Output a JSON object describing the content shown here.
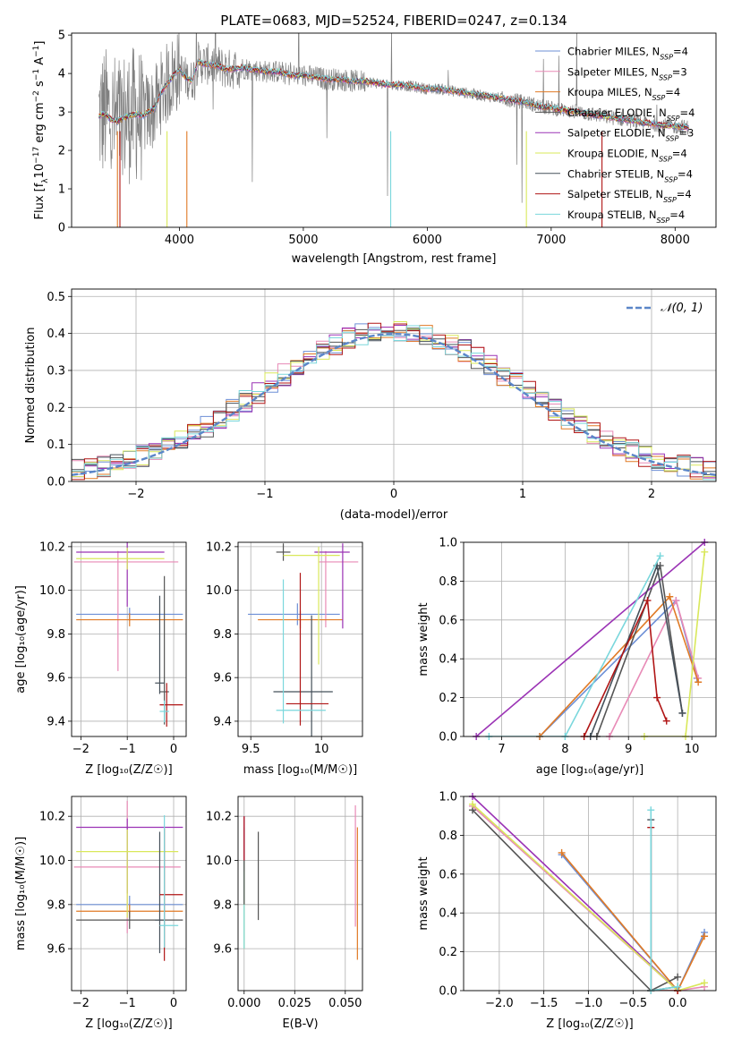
{
  "title": "PLATE=0683, MJD=52524, FIBERID=0247, z=0.134",
  "colors": [
    "#6d8fd6",
    "#e88ab6",
    "#e07a25",
    "#555555",
    "#9b33b5",
    "#d9e85a",
    "#45505a",
    "#b01515",
    "#7ad7dc"
  ],
  "legend_labels": [
    "Chabrier MILES, N_SSP=4",
    "Salpeter MILES, N_SSP=3",
    "Kroupa MILES, N_SSP=4",
    "Chabrier ELODIE, N_SSP=4",
    "Salpeter ELODIE, N_SSP=3",
    "Kroupa ELODIE, N_SSP=4",
    "Chabrier STELIB, N_SSP=4",
    "Salpeter STELIB, N_SSP=4",
    "Kroupa STELIB, N_SSP=4"
  ],
  "chart_data": [
    {
      "id": "spectrum",
      "type": "line",
      "title": "PLATE=0683, MJD=52524, FIBERID=0247, z=0.134",
      "xlabel": "wavelength [Angstrom, rest frame]",
      "ylabel": "Flux [f_λ 10^-17 erg cm^-2 s^-1 A^-1]",
      "xlim": [
        3130,
        8330
      ],
      "ylim": [
        0,
        5.05
      ],
      "xticks": [
        4000,
        5000,
        6000,
        7000,
        8000
      ],
      "yticks": [
        0,
        1,
        2,
        3,
        4,
        5
      ],
      "grid": false,
      "legend": "right",
      "observed_color": "#808080",
      "model_points": [
        [
          3350,
          2.9
        ],
        [
          3400,
          2.95
        ],
        [
          3450,
          2.8
        ],
        [
          3500,
          2.75
        ],
        [
          3550,
          2.85
        ],
        [
          3600,
          2.9
        ],
        [
          3650,
          2.95
        ],
        [
          3700,
          2.9
        ],
        [
          3800,
          3.1
        ],
        [
          3850,
          3.5
        ],
        [
          3950,
          3.95
        ],
        [
          4000,
          4.1
        ],
        [
          4050,
          3.9
        ],
        [
          4100,
          3.8
        ],
        [
          4150,
          4.3
        ],
        [
          4200,
          4.25
        ],
        [
          4300,
          4.2
        ],
        [
          4400,
          4.1
        ],
        [
          4500,
          4.15
        ],
        [
          4600,
          4.1
        ],
        [
          4700,
          4.05
        ],
        [
          4800,
          4.05
        ],
        [
          4900,
          3.95
        ],
        [
          5000,
          3.95
        ],
        [
          5100,
          3.9
        ],
        [
          5200,
          3.85
        ],
        [
          5300,
          3.85
        ],
        [
          5400,
          3.8
        ],
        [
          5500,
          3.8
        ],
        [
          5600,
          3.75
        ],
        [
          5700,
          3.7
        ],
        [
          5800,
          3.7
        ],
        [
          5900,
          3.65
        ],
        [
          6000,
          3.6
        ],
        [
          6100,
          3.6
        ],
        [
          6200,
          3.55
        ],
        [
          6300,
          3.5
        ],
        [
          6400,
          3.45
        ],
        [
          6500,
          3.4
        ],
        [
          6600,
          3.35
        ],
        [
          6700,
          3.3
        ],
        [
          6800,
          3.25
        ],
        [
          6900,
          3.15
        ],
        [
          7000,
          3.1
        ],
        [
          7100,
          3.05
        ],
        [
          7200,
          3.0
        ],
        [
          7300,
          2.95
        ],
        [
          7400,
          2.9
        ],
        [
          7500,
          2.85
        ],
        [
          7600,
          2.8
        ],
        [
          7700,
          2.75
        ],
        [
          7800,
          2.7
        ],
        [
          7900,
          2.65
        ],
        [
          8000,
          2.62
        ],
        [
          8100,
          2.6
        ]
      ]
    },
    {
      "id": "residuals",
      "type": "histogram",
      "xlabel": "(data-model)/error",
      "ylabel": "Normed distribution",
      "xlim": [
        -2.5,
        2.5
      ],
      "ylim": [
        0,
        0.52
      ],
      "xticks": [
        -2,
        -1,
        0,
        1,
        2
      ],
      "yticks": [
        0.0,
        0.1,
        0.2,
        0.3,
        0.4,
        0.5
      ],
      "grid": true,
      "legend": "top-right",
      "reference": {
        "name": "𝒩(0, 1)",
        "color": "#5b86c8",
        "mean": 0,
        "sigma": 1
      }
    },
    {
      "id": "age_vs_Z",
      "type": "errorbar",
      "xlabel": "Z [log10(Z/Z⊙)]",
      "ylabel": "age [log10(age/yr)]",
      "xlim": [
        -2.2,
        0.27
      ],
      "ylim": [
        9.33,
        10.22
      ],
      "xticks": [
        -2,
        -1,
        0
      ],
      "yticks": [
        9.4,
        9.6,
        9.8,
        10.0,
        10.2
      ],
      "grid": true,
      "points": [
        {
          "x": -0.95,
          "xerr": [
            1.15,
            1.15
          ],
          "y": 9.89,
          "yerr": [
            0.03,
            0.03
          ],
          "series": 0
        },
        {
          "x": -1.2,
          "xerr": [
            0.95,
            1.3
          ],
          "y": 10.13,
          "yerr": [
            0.5,
            0.05
          ],
          "series": 1
        },
        {
          "x": -0.95,
          "xerr": [
            1.15,
            1.15
          ],
          "y": 9.865,
          "yerr": [
            0.03,
            0.03
          ],
          "series": 2
        },
        {
          "x": -0.2,
          "xerr": [
            0.1,
            0.1
          ],
          "y": 9.535,
          "yerr": [
            0.15,
            0.53
          ],
          "series": 3
        },
        {
          "x": -1.0,
          "xerr": [
            1.1,
            0.8
          ],
          "y": 10.175,
          "yerr": [
            0.25,
            0.05
          ],
          "series": 4
        },
        {
          "x": -1.0,
          "xerr": [
            1.1,
            0.8
          ],
          "y": 10.145,
          "yerr": [
            0.05,
            0.05
          ],
          "series": 5
        },
        {
          "x": -0.3,
          "xerr": [
            0.1,
            0.1
          ],
          "y": 9.575,
          "yerr": [
            0.05,
            0.4
          ],
          "series": 6
        },
        {
          "x": -0.15,
          "xerr": [
            0.15,
            0.35
          ],
          "y": 9.475,
          "yerr": [
            0.1,
            0.1
          ],
          "series": 7
        },
        {
          "x": -0.2,
          "xerr": [
            0.1,
            0.1
          ],
          "y": 9.445,
          "yerr": [
            0.05,
            0.05
          ],
          "series": 8
        }
      ]
    },
    {
      "id": "age_vs_mass",
      "type": "errorbar",
      "xlabel": "mass [log10(M/M⊙)]",
      "ylabel": "",
      "xlim": [
        9.41,
        10.29
      ],
      "ylim": [
        9.33,
        10.22
      ],
      "xticks": [
        9.5,
        10.0
      ],
      "yticks": [
        9.4,
        9.6,
        9.8,
        10.0,
        10.2
      ],
      "grid": true,
      "points": [
        {
          "x": 9.83,
          "xerr": [
            0.35,
            0.3
          ],
          "y": 9.89,
          "yerr": [
            0.05,
            0.05
          ],
          "series": 0
        },
        {
          "x": 10.03,
          "xerr": [
            0.05,
            0.23
          ],
          "y": 10.13,
          "yerr": [
            0.3,
            0.05
          ],
          "series": 1
        },
        {
          "x": 9.85,
          "xerr": [
            0.3,
            0.3
          ],
          "y": 9.865,
          "yerr": [
            0.04,
            0.04
          ],
          "series": 2
        },
        {
          "x": 9.73,
          "xerr": [
            0.05,
            0.05
          ],
          "y": 10.175,
          "yerr": [
            0.04,
            0.04
          ],
          "series": 3
        },
        {
          "x": 10.15,
          "xerr": [
            0.2,
            0.05
          ],
          "y": 10.175,
          "yerr": [
            0.35,
            0.04
          ],
          "series": 4
        },
        {
          "x": 9.98,
          "xerr": [
            0.25,
            0.15
          ],
          "y": 10.16,
          "yerr": [
            0.5,
            0.04
          ],
          "series": 5
        },
        {
          "x": 9.93,
          "xerr": [
            0.27,
            0.15
          ],
          "y": 9.535,
          "yerr": [
            0.3,
            0.35
          ],
          "series": 6
        },
        {
          "x": 9.85,
          "xerr": [
            0.1,
            0.2
          ],
          "y": 9.48,
          "yerr": [
            0.1,
            0.6
          ],
          "series": 7
        },
        {
          "x": 9.73,
          "xerr": [
            0.05,
            0.3
          ],
          "y": 9.45,
          "yerr": [
            0.06,
            0.6
          ],
          "series": 8
        }
      ]
    },
    {
      "id": "mass_weight_vs_age",
      "type": "line",
      "xlabel": "age [log10(age/yr)]",
      "ylabel": "mass weight",
      "xlim": [
        6.4,
        10.38
      ],
      "ylim": [
        0,
        1
      ],
      "xticks": [
        7,
        8,
        9,
        10
      ],
      "yticks": [
        0.0,
        0.2,
        0.4,
        0.6,
        0.8,
        1.0
      ],
      "grid": true,
      "series": [
        {
          "color": 0,
          "x": [
            7.6,
            9.75,
            10.08
          ],
          "y": [
            0.0,
            0.7,
            0.3
          ]
        },
        {
          "color": 1,
          "x": [
            8.7,
            9.75,
            10.1
          ],
          "y": [
            0.0,
            0.7,
            0.3
          ]
        },
        {
          "color": 2,
          "x": [
            7.6,
            9.65,
            10.1
          ],
          "y": [
            0.0,
            0.72,
            0.28
          ]
        },
        {
          "color": 3,
          "x": [
            8.5,
            9.5,
            9.85
          ],
          "y": [
            0.0,
            0.88,
            0.12
          ]
        },
        {
          "color": 4,
          "x": [
            6.6,
            10.2
          ],
          "y": [
            0.0,
            1.0
          ]
        },
        {
          "color": 5,
          "x": [
            9.25,
            9.9,
            10.2
          ],
          "y": [
            0.0,
            0.0,
            0.95
          ]
        },
        {
          "color": 6,
          "x": [
            8.4,
            9.45,
            9.85
          ],
          "y": [
            0.0,
            0.88,
            0.12
          ]
        },
        {
          "color": 7,
          "x": [
            8.3,
            9.3,
            9.45,
            9.6
          ],
          "y": [
            0.0,
            0.7,
            0.2,
            0.08
          ]
        },
        {
          "color": 8,
          "x": [
            6.8,
            8.0,
            9.5
          ],
          "y": [
            0.0,
            0.0,
            0.93
          ]
        }
      ]
    },
    {
      "id": "mass_vs_Z",
      "type": "errorbar",
      "xlabel": "Z [log10(Z/Z⊙)]",
      "ylabel": "mass [log10(M/M⊙)]",
      "xlim": [
        -2.2,
        0.27
      ],
      "ylim": [
        9.41,
        10.29
      ],
      "xticks": [
        -2,
        -1,
        0
      ],
      "yticks": [
        9.6,
        9.8,
        10.0,
        10.2
      ],
      "grid": true,
      "points": [
        {
          "x": -0.95,
          "xerr": [
            1.15,
            1.15
          ],
          "y": 9.8,
          "yerr": [
            0.04,
            0.04
          ],
          "series": 0
        },
        {
          "x": -1.0,
          "xerr": [
            1.15,
            1.15
          ],
          "y": 9.97,
          "yerr": [
            0.3,
            0.3
          ],
          "series": 1
        },
        {
          "x": -0.95,
          "xerr": [
            1.15,
            1.15
          ],
          "y": 9.77,
          "yerr": [
            0.03,
            0.03
          ],
          "series": 2
        },
        {
          "x": -0.95,
          "xerr": [
            1.15,
            1.15
          ],
          "y": 9.73,
          "yerr": [
            0.04,
            0.04
          ],
          "series": 3
        },
        {
          "x": -1.0,
          "xerr": [
            1.1,
            1.2
          ],
          "y": 10.15,
          "yerr": [
            0.3,
            0.04
          ],
          "series": 4
        },
        {
          "x": -1.0,
          "xerr": [
            1.1,
            1.1
          ],
          "y": 10.04,
          "yerr": [
            0.3,
            0.1
          ],
          "series": 5
        },
        {
          "x": -0.3,
          "xerr": [
            0.1,
            0.1
          ],
          "y": 9.73,
          "yerr": [
            0.15,
            0.4
          ],
          "series": 6
        },
        {
          "x": -0.2,
          "xerr": [
            0.1,
            0.4
          ],
          "y": 9.845,
          "yerr": [
            0.3,
            0.3
          ],
          "series": 7
        },
        {
          "x": -0.2,
          "xerr": [
            0.1,
            0.3
          ],
          "y": 9.705,
          "yerr": [
            0.1,
            0.5
          ],
          "series": 8
        }
      ]
    },
    {
      "id": "mass_vs_ebv",
      "type": "errorbar",
      "xlabel": "E(B-V)",
      "ylabel": "",
      "xlim": [
        -0.003,
        0.0585
      ],
      "ylim": [
        9.41,
        10.29
      ],
      "xticks": [
        0.0,
        0.025,
        0.05
      ],
      "yticks": [
        9.6,
        9.8,
        10.0,
        10.2
      ],
      "grid": true,
      "points": [
        {
          "x": 0.0,
          "xerr": [
            0,
            0
          ],
          "y": 9.95,
          "yerr": [
            0.15,
            0.2
          ],
          "series": 0
        },
        {
          "x": 0.055,
          "xerr": [
            0,
            0
          ],
          "y": 10.0,
          "yerr": [
            0.3,
            0.25
          ],
          "series": 1
        },
        {
          "x": 0.056,
          "xerr": [
            0,
            0
          ],
          "y": 9.75,
          "yerr": [
            0.2,
            0.4
          ],
          "series": 2
        },
        {
          "x": 0.007,
          "xerr": [
            0,
            0
          ],
          "y": 9.93,
          "yerr": [
            0.2,
            0.2
          ],
          "series": 3
        },
        {
          "x": 0.0,
          "xerr": [
            0,
            0
          ],
          "y": 10.05,
          "yerr": [
            0.1,
            0.15
          ],
          "series": 4
        },
        {
          "x": 0.0,
          "xerr": [
            0,
            0
          ],
          "y": 9.8,
          "yerr": [
            0.2,
            0.2
          ],
          "series": 5
        },
        {
          "x": 0.0,
          "xerr": [
            0,
            0
          ],
          "y": 9.9,
          "yerr": [
            0.1,
            0.1
          ],
          "series": 6
        },
        {
          "x": 0.0,
          "xerr": [
            0,
            0
          ],
          "y": 10.1,
          "yerr": [
            0.1,
            0.1
          ],
          "series": 7
        },
        {
          "x": 0.0,
          "xerr": [
            0,
            0
          ],
          "y": 9.7,
          "yerr": [
            0.1,
            0.1
          ],
          "series": 8
        }
      ]
    },
    {
      "id": "mass_weight_vs_Z",
      "type": "line",
      "xlabel": "Z [log10(Z/Z⊙)]",
      "ylabel": "mass weight",
      "xlim": [
        -2.4,
        0.43
      ],
      "ylim": [
        0,
        1
      ],
      "xticks": [
        -2.0,
        -1.5,
        -1.0,
        -0.5,
        0.0
      ],
      "yticks": [
        0.0,
        0.2,
        0.4,
        0.6,
        0.8,
        1.0
      ],
      "grid": true,
      "series": [
        {
          "color": 0,
          "x": [
            -1.3,
            0.0,
            0.3
          ],
          "y": [
            0.7,
            0.0,
            0.3
          ]
        },
        {
          "color": 1,
          "x": [
            -2.3,
            0.0,
            0.3
          ],
          "y": [
            0.95,
            0.0,
            0.02
          ]
        },
        {
          "color": 2,
          "x": [
            -1.3,
            0.0,
            0.3
          ],
          "y": [
            0.71,
            0.0,
            0.28
          ]
        },
        {
          "color": 3,
          "x": [
            -2.3,
            -0.3,
            0.0
          ],
          "y": [
            0.93,
            0.0,
            0.07
          ]
        },
        {
          "color": 4,
          "x": [
            -2.3,
            0.0
          ],
          "y": [
            1.0,
            0.0
          ]
        },
        {
          "color": 5,
          "x": [
            -2.3,
            0.0,
            0.3
          ],
          "y": [
            0.96,
            0.0,
            0.04
          ]
        },
        {
          "color": 6,
          "x": [
            -0.3,
            -0.3,
            0.0
          ],
          "y": [
            0.88,
            0.0,
            0.02
          ]
        },
        {
          "color": 7,
          "x": [
            -0.3,
            -0.3,
            0.0
          ],
          "y": [
            0.84,
            0.0,
            0.0
          ]
        },
        {
          "color": 8,
          "x": [
            -0.3,
            -0.3,
            0.0
          ],
          "y": [
            0.93,
            0.0,
            0.02
          ]
        }
      ]
    }
  ]
}
